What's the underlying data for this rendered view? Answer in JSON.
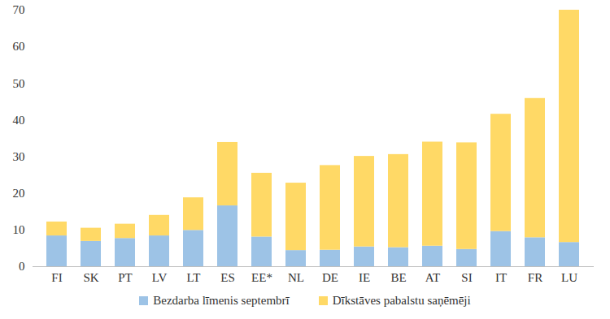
{
  "chart_data": {
    "type": "bar",
    "stacked": true,
    "legend": "bottom",
    "grid": false,
    "categories": [
      "FI",
      "SK",
      "PT",
      "LV",
      "LT",
      "ES",
      "EE*",
      "NL",
      "DE",
      "IE",
      "BE",
      "AT",
      "SI",
      "IT",
      "FR",
      "LU"
    ],
    "series": [
      {
        "name": "Bezdarba līmenis septembrī",
        "color": "#9dc3e6",
        "values": [
          8.4,
          6.9,
          7.7,
          8.4,
          9.9,
          16.6,
          8.1,
          4.4,
          4.5,
          5.4,
          5.2,
          5.6,
          4.7,
          9.6,
          7.9,
          6.6
        ]
      },
      {
        "name": "Dīkstāves pabalstu saņēmēji",
        "color": "#ffd966",
        "values": [
          3.8,
          3.6,
          3.9,
          5.6,
          8.9,
          17.3,
          17.4,
          18.4,
          23.1,
          24.7,
          25.4,
          28.4,
          29.1,
          32.0,
          38.0,
          63.4
        ]
      }
    ],
    "ylim": [
      0,
      70
    ],
    "yticks": [
      0,
      10,
      20,
      30,
      40,
      50,
      60,
      70
    ]
  }
}
